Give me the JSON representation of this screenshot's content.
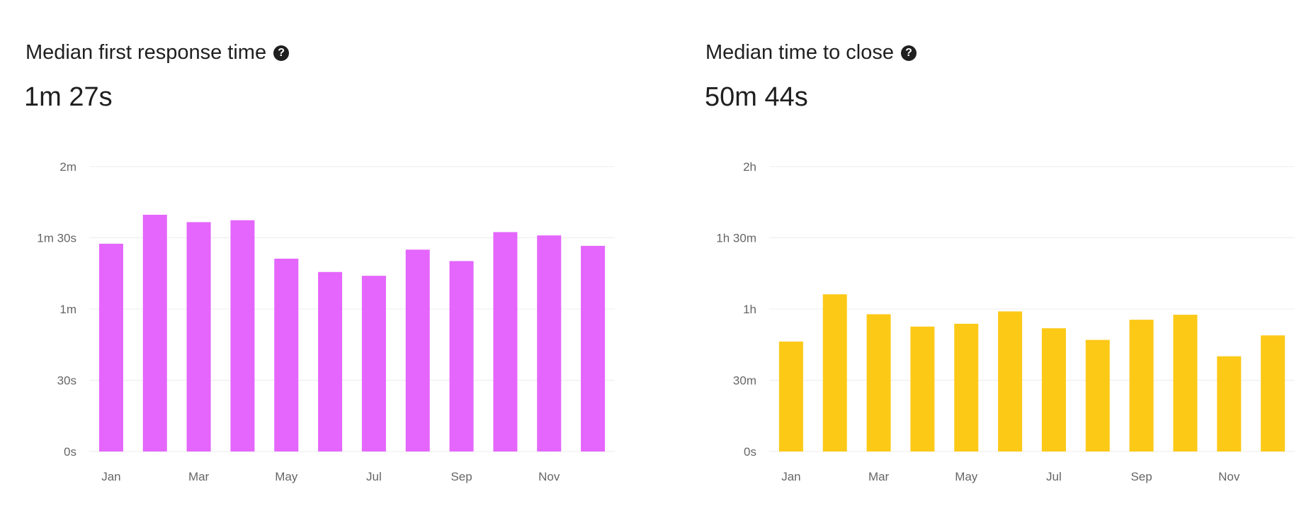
{
  "chart_data": [
    {
      "type": "bar",
      "title": "Median first response time",
      "summary_value": "1m 27s",
      "color": "#e466fd",
      "categories": [
        "Jan",
        "Feb",
        "Mar",
        "Apr",
        "May",
        "Jun",
        "Jul",
        "Aug",
        "Sep",
        "Oct",
        "Nov",
        "Dec"
      ],
      "x_tick_labels": [
        "Jan",
        "",
        "Mar",
        "",
        "May",
        "",
        "Jul",
        "",
        "Sep",
        "",
        "Nov",
        ""
      ],
      "values_seconds": [
        87.5,
        99.7,
        96.6,
        97.4,
        81.2,
        75.6,
        74,
        85,
        80.2,
        92.4,
        91,
        86.6
      ],
      "ylim": [
        0,
        120
      ],
      "y_ticks": [
        0,
        30,
        60,
        90,
        120
      ],
      "y_tick_labels": [
        "0s",
        "30s",
        "1m",
        "1m 30s",
        "2m"
      ],
      "grid": true
    },
    {
      "type": "bar",
      "title": "Median time to close",
      "summary_value": "50m 44s",
      "color": "#fcc917",
      "categories": [
        "Jan",
        "Feb",
        "Mar",
        "Apr",
        "May",
        "Jun",
        "Jul",
        "Aug",
        "Sep",
        "Oct",
        "Nov",
        "Dec"
      ],
      "x_tick_labels": [
        "Jan",
        "",
        "Mar",
        "",
        "May",
        "",
        "Jul",
        "",
        "Sep",
        "",
        "Nov",
        ""
      ],
      "values_minutes": [
        46.3,
        66.2,
        57.8,
        52.6,
        53.8,
        59,
        51.9,
        47,
        55.5,
        57.6,
        40.1,
        48.9
      ],
      "ylim": [
        0,
        120
      ],
      "y_ticks": [
        0,
        30,
        60,
        90,
        120
      ],
      "y_tick_labels": [
        "0s",
        "30m",
        "1h",
        "1h 30m",
        "2h"
      ],
      "grid": true
    }
  ],
  "icons": {
    "help": "question-circle-icon"
  }
}
